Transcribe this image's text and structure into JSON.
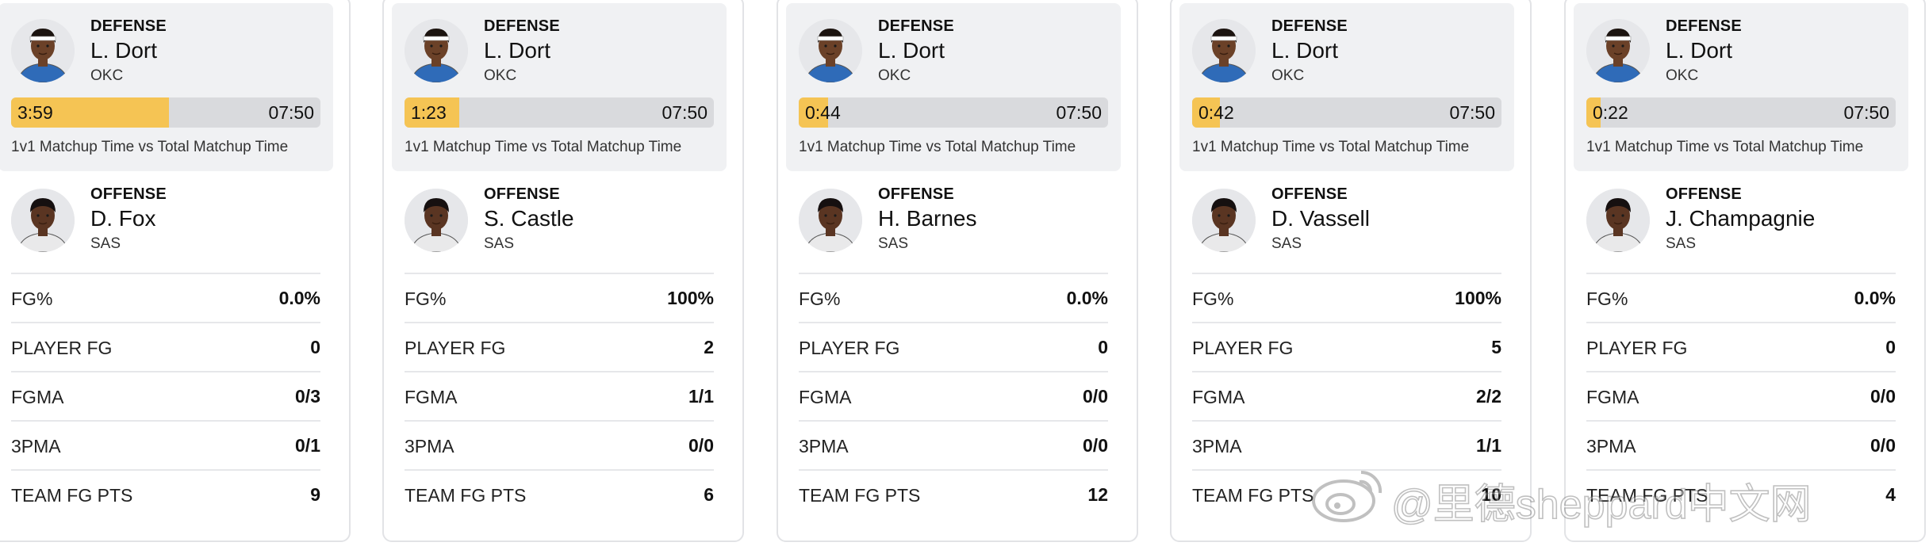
{
  "cards": [
    {
      "defense": {
        "role": "DEFENSE",
        "name": "L. Dort",
        "team": "OKC",
        "avatar_icon": "player-headshot-icon"
      },
      "bar": {
        "matchup_time": "3:59",
        "total_time": "07:50",
        "fraction": 0.509,
        "caption": "1v1 Matchup Time vs Total Matchup Time"
      },
      "offense": {
        "role": "OFFENSE",
        "name": "D. Fox",
        "team": "SAS",
        "avatar_icon": "player-headshot-icon"
      },
      "stats": [
        {
          "label": "FG%",
          "value": "0.0%"
        },
        {
          "label": "PLAYER FG",
          "value": "0"
        },
        {
          "label": "FGMA",
          "value": "0/3"
        },
        {
          "label": "3PMA",
          "value": "0/1"
        },
        {
          "label": "TEAM FG PTS",
          "value": "9"
        }
      ]
    },
    {
      "defense": {
        "role": "DEFENSE",
        "name": "L. Dort",
        "team": "OKC",
        "avatar_icon": "player-headshot-icon"
      },
      "bar": {
        "matchup_time": "1:23",
        "total_time": "07:50",
        "fraction": 0.177,
        "caption": "1v1 Matchup Time vs Total Matchup Time"
      },
      "offense": {
        "role": "OFFENSE",
        "name": "S. Castle",
        "team": "SAS",
        "avatar_icon": "player-headshot-icon"
      },
      "stats": [
        {
          "label": "FG%",
          "value": "100%"
        },
        {
          "label": "PLAYER FG",
          "value": "2"
        },
        {
          "label": "FGMA",
          "value": "1/1"
        },
        {
          "label": "3PMA",
          "value": "0/0"
        },
        {
          "label": "TEAM FG PTS",
          "value": "6"
        }
      ]
    },
    {
      "defense": {
        "role": "DEFENSE",
        "name": "L. Dort",
        "team": "OKC",
        "avatar_icon": "player-headshot-icon"
      },
      "bar": {
        "matchup_time": "0:44",
        "total_time": "07:50",
        "fraction": 0.094,
        "caption": "1v1 Matchup Time vs Total Matchup Time"
      },
      "offense": {
        "role": "OFFENSE",
        "name": "H. Barnes",
        "team": "SAS",
        "avatar_icon": "player-headshot-icon"
      },
      "stats": [
        {
          "label": "FG%",
          "value": "0.0%"
        },
        {
          "label": "PLAYER FG",
          "value": "0"
        },
        {
          "label": "FGMA",
          "value": "0/0"
        },
        {
          "label": "3PMA",
          "value": "0/0"
        },
        {
          "label": "TEAM FG PTS",
          "value": "12"
        }
      ]
    },
    {
      "defense": {
        "role": "DEFENSE",
        "name": "L. Dort",
        "team": "OKC",
        "avatar_icon": "player-headshot-icon"
      },
      "bar": {
        "matchup_time": "0:42",
        "total_time": "07:50",
        "fraction": 0.089,
        "caption": "1v1 Matchup Time vs Total Matchup Time"
      },
      "offense": {
        "role": "OFFENSE",
        "name": "D. Vassell",
        "team": "SAS",
        "avatar_icon": "player-headshot-icon"
      },
      "stats": [
        {
          "label": "FG%",
          "value": "100%"
        },
        {
          "label": "PLAYER FG",
          "value": "5"
        },
        {
          "label": "FGMA",
          "value": "2/2"
        },
        {
          "label": "3PMA",
          "value": "1/1"
        },
        {
          "label": "TEAM FG PTS",
          "value": "10"
        }
      ]
    },
    {
      "defense": {
        "role": "DEFENSE",
        "name": "L. Dort",
        "team": "OKC",
        "avatar_icon": "player-headshot-icon"
      },
      "bar": {
        "matchup_time": "0:22",
        "total_time": "07:50",
        "fraction": 0.047,
        "caption": "1v1 Matchup Time vs Total Matchup Time"
      },
      "offense": {
        "role": "OFFENSE",
        "name": "J. Champagnie",
        "team": "SAS",
        "avatar_icon": "player-headshot-icon"
      },
      "stats": [
        {
          "label": "FG%",
          "value": "0.0%"
        },
        {
          "label": "PLAYER FG",
          "value": "0"
        },
        {
          "label": "FGMA",
          "value": "0/0"
        },
        {
          "label": "3PMA",
          "value": "0/0"
        },
        {
          "label": "TEAM FG PTS",
          "value": "4"
        }
      ]
    }
  ],
  "colors": {
    "bar_fill": "#f5c454",
    "bar_track": "#d9dadd",
    "defense_box": "#f0f1f3",
    "okc_jersey": "#2f6bb8",
    "sas_jersey": "#e9e9ea"
  },
  "watermark": {
    "text": "@里德sheppard中文网",
    "icon": "weibo-logo-icon"
  }
}
